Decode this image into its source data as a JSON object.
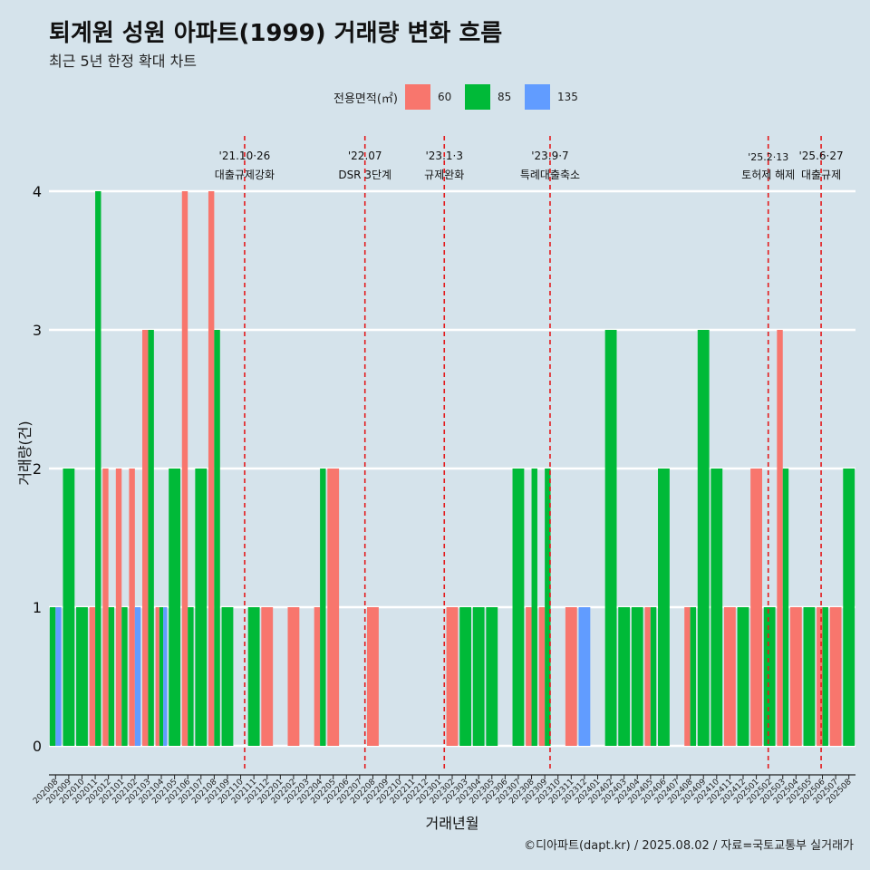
{
  "header": {
    "title": "퇴계원 성원 아파트(1999) 거래량 변화 흐름",
    "subtitle": "최근 5년 한정 확대 차트"
  },
  "legend": {
    "title": "전용면적(㎡)",
    "items": [
      {
        "label": "60",
        "color": "#F8766D"
      },
      {
        "label": "85",
        "color": "#00BA38"
      },
      {
        "label": "135",
        "color": "#619CFF"
      }
    ]
  },
  "caption": "©디아파트(dapt.kr) / 2025.08.02 / 자료=국토교통부 실거래가",
  "chart_data": {
    "type": "bar",
    "xlabel": "거래년월",
    "ylabel": "거래량(건)",
    "ylim": [
      0,
      4
    ],
    "yticks": [
      0,
      1,
      2,
      3,
      4
    ],
    "grid": true,
    "categories": [
      "202008",
      "202009",
      "202010",
      "202011",
      "202012",
      "202101",
      "202102",
      "202103",
      "202104",
      "202105",
      "202106",
      "202107",
      "202108",
      "202109",
      "202110",
      "202111",
      "202112",
      "202201",
      "202202",
      "202203",
      "202204",
      "202205",
      "202206",
      "202207",
      "202208",
      "202209",
      "202210",
      "202211",
      "202212",
      "202301",
      "202302",
      "202303",
      "202304",
      "202305",
      "202306",
      "202307",
      "202308",
      "202309",
      "202310",
      "202311",
      "202312",
      "202401",
      "202402",
      "202403",
      "202404",
      "202405",
      "202406",
      "202407",
      "202408",
      "202409",
      "202410",
      "202411",
      "202412",
      "202501",
      "202502",
      "202503",
      "202504",
      "202505",
      "202506",
      "202507",
      "202508"
    ],
    "series": [
      {
        "name": "60",
        "color": "#F8766D",
        "values": [
          0,
          0,
          0,
          1,
          2,
          2,
          2,
          3,
          1,
          0,
          4,
          0,
          4,
          0,
          0,
          0,
          1,
          0,
          1,
          0,
          1,
          2,
          0,
          0,
          1,
          0,
          0,
          0,
          0,
          0,
          1,
          0,
          0,
          0,
          0,
          0,
          1,
          1,
          0,
          1,
          0,
          0,
          0,
          0,
          0,
          1,
          0,
          0,
          1,
          0,
          0,
          1,
          0,
          2,
          0,
          3,
          1,
          0,
          1,
          1,
          0
        ]
      },
      {
        "name": "85",
        "color": "#00BA38",
        "values": [
          1,
          2,
          1,
          4,
          1,
          1,
          0,
          3,
          1,
          2,
          1,
          2,
          3,
          1,
          0,
          1,
          0,
          0,
          0,
          0,
          2,
          0,
          0,
          0,
          0,
          0,
          0,
          0,
          0,
          0,
          0,
          1,
          1,
          1,
          0,
          2,
          2,
          2,
          0,
          0,
          0,
          0,
          3,
          1,
          1,
          1,
          2,
          0,
          1,
          3,
          2,
          0,
          1,
          0,
          1,
          2,
          0,
          1,
          1,
          0,
          2
        ]
      },
      {
        "name": "135",
        "color": "#619CFF",
        "values": [
          1,
          0,
          0,
          0,
          0,
          0,
          1,
          0,
          1,
          0,
          0,
          0,
          0,
          0,
          0,
          0,
          0,
          0,
          0,
          0,
          0,
          0,
          0,
          0,
          0,
          0,
          0,
          0,
          0,
          0,
          0,
          0,
          0,
          0,
          0,
          0,
          0,
          0,
          0,
          0,
          1,
          0,
          0,
          0,
          0,
          0,
          0,
          0,
          0,
          0,
          0,
          0,
          0,
          0,
          0,
          0,
          0,
          0,
          0,
          0,
          0
        ]
      }
    ],
    "annotations": [
      {
        "date": "'21.10·26",
        "label": "대출규제강화",
        "index": 14.8
      },
      {
        "date": "'22.07",
        "label": "DSR 3단계",
        "index": 23.9
      },
      {
        "date": "'23.1·3",
        "label": "규제완화",
        "index": 29.9
      },
      {
        "date": "'23.9·7",
        "label": "특례대출축소",
        "index": 37.9
      },
      {
        "date": "'25.2·13",
        "label": "토허제 해제",
        "index": 54.4
      },
      {
        "date": "'25.6·27",
        "label": "대출규제",
        "index": 58.4
      }
    ]
  }
}
